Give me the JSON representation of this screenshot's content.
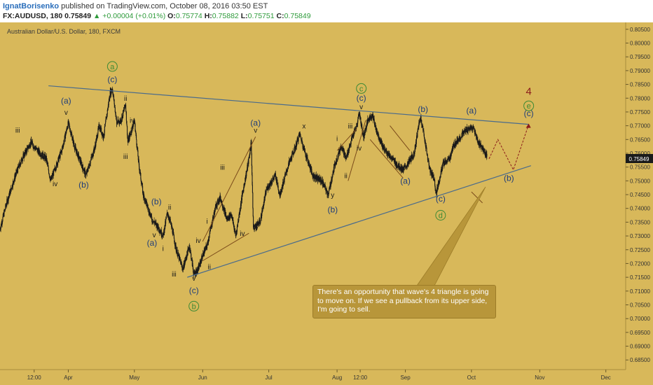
{
  "header": {
    "author": "IgnatBorisenko",
    "published": "published on TradingView.com, October 08, 2016 03:50 EST",
    "symbol": "FX:AUDUSD, 180",
    "last": "0.75849",
    "change": "▲ +0.00004 (+0.01%)",
    "o_label": "O:",
    "o": "0.75774",
    "h_label": "H:",
    "h": "0.75882",
    "l_label": "L:",
    "l": "0.75751",
    "c_label": "C:",
    "c": "0.75849"
  },
  "chart_title": "Australian Dollar/U.S. Dollar, 180, FXCM",
  "price_tag": "0.75849",
  "callout": "There's an opportunity that wave's 4 triangle is going to move on. If we see a pullback from its upper side, I'm going to sell.",
  "colors": {
    "background": "#d8b85a",
    "trendline": "#4a6b8c",
    "channel": "#7a4a1a",
    "candle": "#1a1a1a",
    "label_green": "#3d8a35",
    "label_paren": "#1f3d7a",
    "wave4": "#8b1a1a",
    "forecast": "#8b1a1a",
    "callout_bg": "#b8963a"
  },
  "chart_data": {
    "type": "candlestick",
    "title": "Australian Dollar/U.S. Dollar, 180, FXCM",
    "ylim": [
      0.68,
      0.805
    ],
    "y_ticks": [
      "0.80500",
      "0.80000",
      "0.79500",
      "0.79000",
      "0.78500",
      "0.78000",
      "0.77500",
      "0.77000",
      "0.76500",
      "0.76000",
      "0.75500",
      "0.75000",
      "0.74500",
      "0.74000",
      "0.73500",
      "0.73000",
      "0.72500",
      "0.72000",
      "0.71500",
      "0.71000",
      "0.70500",
      "0.70000",
      "0.69500",
      "0.69000",
      "0.68500"
    ],
    "x_ticks": [
      "12:00",
      "Apr",
      "May",
      "Jun",
      "Jul",
      "Aug",
      "12:00",
      "Sep",
      "Oct",
      "Nov",
      "Dec"
    ],
    "x_tick_times": [
      "2016-03-16T12:00",
      "2016-04-01",
      "2016-05-01",
      "2016-06-01",
      "2016-07-01",
      "2016-08-01",
      "2016-08-11T12:00",
      "2016-09-01",
      "2016-10-01",
      "2016-11-01",
      "2016-12-01"
    ],
    "price_path": [
      [
        "2016-03-01",
        0.7325
      ],
      [
        "2016-03-04",
        0.742
      ],
      [
        "2016-03-08",
        0.752
      ],
      [
        "2016-03-11",
        0.758
      ],
      [
        "2016-03-15",
        0.764
      ],
      [
        "2016-03-18",
        0.761
      ],
      [
        "2016-03-22",
        0.758
      ],
      [
        "2016-03-24",
        0.75
      ],
      [
        "2016-03-29",
        0.761
      ],
      [
        "2016-04-01",
        0.771
      ],
      [
        "2016-04-04",
        0.762
      ],
      [
        "2016-04-07",
        0.756
      ],
      [
        "2016-04-09",
        0.752
      ],
      [
        "2016-04-13",
        0.762
      ],
      [
        "2016-04-15",
        0.77
      ],
      [
        "2016-04-17",
        0.766
      ],
      [
        "2016-04-20",
        0.782
      ],
      [
        "2016-04-21",
        0.7835
      ],
      [
        "2016-04-23",
        0.771
      ],
      [
        "2016-04-25",
        0.772
      ],
      [
        "2016-04-27",
        0.778
      ],
      [
        "2016-04-28",
        0.764
      ],
      [
        "2016-05-01",
        0.772
      ],
      [
        "2016-05-03",
        0.756
      ],
      [
        "2016-05-05",
        0.745
      ],
      [
        "2016-05-09",
        0.736
      ],
      [
        "2016-05-12",
        0.733
      ],
      [
        "2016-05-14",
        0.73
      ],
      [
        "2016-05-16",
        0.7385
      ],
      [
        "2016-05-18",
        0.733
      ],
      [
        "2016-05-20",
        0.725
      ],
      [
        "2016-05-23",
        0.718
      ],
      [
        "2016-05-26",
        0.7265
      ],
      [
        "2016-05-28",
        0.716
      ],
      [
        "2016-05-30",
        0.718
      ],
      [
        "2016-06-01",
        0.723
      ],
      [
        "2016-06-03",
        0.7265
      ],
      [
        "2016-06-05",
        0.734
      ],
      [
        "2016-06-07",
        0.741
      ],
      [
        "2016-06-09",
        0.744
      ],
      [
        "2016-06-12",
        0.736
      ],
      [
        "2016-06-14",
        0.738
      ],
      [
        "2016-06-16",
        0.73
      ],
      [
        "2016-06-19",
        0.745
      ],
      [
        "2016-06-22",
        0.758
      ],
      [
        "2016-06-23",
        0.764
      ],
      [
        "2016-06-24",
        0.733
      ],
      [
        "2016-06-27",
        0.735
      ],
      [
        "2016-06-30",
        0.747
      ],
      [
        "2016-07-04",
        0.752
      ],
      [
        "2016-07-06",
        0.745
      ],
      [
        "2016-07-10",
        0.756
      ],
      [
        "2016-07-13",
        0.762
      ],
      [
        "2016-07-15",
        0.767
      ],
      [
        "2016-07-18",
        0.759
      ],
      [
        "2016-07-21",
        0.752
      ],
      [
        "2016-07-25",
        0.75
      ],
      [
        "2016-07-28",
        0.745
      ],
      [
        "2016-07-31",
        0.756
      ],
      [
        "2016-08-03",
        0.763
      ],
      [
        "2016-08-05",
        0.758
      ],
      [
        "2016-08-08",
        0.766
      ],
      [
        "2016-08-10",
        0.77
      ],
      [
        "2016-08-11",
        0.775
      ],
      [
        "2016-08-13",
        0.766
      ],
      [
        "2016-08-15",
        0.772
      ],
      [
        "2016-08-17",
        0.774
      ],
      [
        "2016-08-19",
        0.768
      ],
      [
        "2016-08-22",
        0.762
      ],
      [
        "2016-08-25",
        0.759
      ],
      [
        "2016-08-28",
        0.756
      ],
      [
        "2016-08-31",
        0.754
      ],
      [
        "2016-09-02",
        0.756
      ],
      [
        "2016-09-05",
        0.76
      ],
      [
        "2016-09-07",
        0.77
      ],
      [
        "2016-09-08",
        0.773
      ],
      [
        "2016-09-10",
        0.764
      ],
      [
        "2016-09-12",
        0.754
      ],
      [
        "2016-09-14",
        0.751
      ],
      [
        "2016-09-15",
        0.7455
      ],
      [
        "2016-09-18",
        0.756
      ],
      [
        "2016-09-21",
        0.758
      ],
      [
        "2016-09-23",
        0.763
      ],
      [
        "2016-09-26",
        0.766
      ],
      [
        "2016-09-28",
        0.768
      ],
      [
        "2016-09-30",
        0.769
      ],
      [
        "2016-10-02",
        0.769
      ],
      [
        "2016-10-04",
        0.764
      ],
      [
        "2016-10-06",
        0.762
      ],
      [
        "2016-10-08",
        0.7585
      ]
    ],
    "upper_trendline": [
      [
        "2016-03-23",
        0.7845
      ],
      [
        "2016-10-27",
        0.7705
      ]
    ],
    "lower_trendline": [
      [
        "2016-05-25",
        0.715
      ],
      [
        "2016-10-28",
        0.7555
      ]
    ],
    "channel_lines": [
      [
        [
          "2016-06-01",
          0.728
        ],
        [
          "2016-06-25",
          0.766
        ]
      ],
      [
        [
          "2016-06-01",
          0.721
        ],
        [
          "2016-06-22",
          0.731
        ]
      ],
      [
        [
          "2016-08-01",
          0.761
        ],
        [
          "2016-08-10",
          0.769
        ]
      ],
      [
        [
          "2016-08-06",
          0.75
        ],
        [
          "2016-08-14",
          0.772
        ]
      ],
      [
        [
          "2016-08-16",
          0.765
        ],
        [
          "2016-08-31",
          0.751
        ]
      ],
      [
        [
          "2016-08-25",
          0.77
        ],
        [
          "2016-09-03",
          0.761
        ]
      ],
      [
        [
          "2016-10-01",
          0.746
        ],
        [
          "2016-10-06",
          0.742
        ]
      ]
    ],
    "forecast_path": [
      [
        "2016-10-09",
        0.758
      ],
      [
        "2016-10-13",
        0.765
      ],
      [
        "2016-10-20",
        0.754
      ],
      [
        "2016-10-27",
        0.7705
      ]
    ],
    "wave_labels": [
      {
        "text": "iii",
        "t": "2016-03-09",
        "p": 0.7675,
        "style": "plain"
      },
      {
        "text": "iv",
        "t": "2016-03-26",
        "p": 0.748,
        "style": "plain"
      },
      {
        "text": "v",
        "t": "2016-03-31",
        "p": 0.774,
        "style": "plain"
      },
      {
        "text": "(a)",
        "t": "2016-03-31",
        "p": 0.778,
        "style": "paren"
      },
      {
        "text": "(b)",
        "t": "2016-04-08",
        "p": 0.7475,
        "style": "paren"
      },
      {
        "text": "a",
        "t": "2016-04-21",
        "p": 0.7905,
        "style": "green"
      },
      {
        "text": "(c)",
        "t": "2016-04-21",
        "p": 0.7858,
        "style": "paren"
      },
      {
        "text": "ii",
        "t": "2016-04-27",
        "p": 0.779,
        "style": "plain"
      },
      {
        "text": "i",
        "t": "2016-04-23",
        "p": 0.7695,
        "style": "plain"
      },
      {
        "text": "iv",
        "t": "2016-04-30",
        "p": 0.771,
        "style": "plain"
      },
      {
        "text": "iii",
        "t": "2016-04-27",
        "p": 0.758,
        "style": "plain"
      },
      {
        "text": "(b)",
        "t": "2016-05-11",
        "p": 0.7415,
        "style": "paren"
      },
      {
        "text": "ii",
        "t": "2016-05-17",
        "p": 0.7395,
        "style": "plain"
      },
      {
        "text": "v",
        "t": "2016-05-10",
        "p": 0.7295,
        "style": "plain"
      },
      {
        "text": "(a)",
        "t": "2016-05-09",
        "p": 0.7265,
        "style": "paren"
      },
      {
        "text": "i",
        "t": "2016-05-14",
        "p": 0.7245,
        "style": "plain"
      },
      {
        "text": "iii",
        "t": "2016-05-19",
        "p": 0.7153,
        "style": "plain"
      },
      {
        "text": "iv",
        "t": "2016-05-30",
        "p": 0.7275,
        "style": "plain"
      },
      {
        "text": "i",
        "t": "2016-06-03",
        "p": 0.7345,
        "style": "plain"
      },
      {
        "text": "ii",
        "t": "2016-06-04",
        "p": 0.718,
        "style": "plain"
      },
      {
        "text": "v",
        "t": "2016-05-28",
        "p": 0.7138,
        "style": "plain"
      },
      {
        "text": "(c)",
        "t": "2016-05-28",
        "p": 0.7092,
        "style": "paren"
      },
      {
        "text": "b",
        "t": "2016-05-28",
        "p": 0.7035,
        "style": "green"
      },
      {
        "text": "iii",
        "t": "2016-06-10",
        "p": 0.754,
        "style": "plain"
      },
      {
        "text": "iv",
        "t": "2016-06-19",
        "p": 0.73,
        "style": "plain"
      },
      {
        "text": "(a)",
        "t": "2016-06-25",
        "p": 0.77,
        "style": "paren"
      },
      {
        "text": "v",
        "t": "2016-06-25",
        "p": 0.7675,
        "style": "plain"
      },
      {
        "text": "w",
        "t": "2016-06-25",
        "p": 0.732,
        "style": "plain"
      },
      {
        "text": "x",
        "t": "2016-07-17",
        "p": 0.769,
        "style": "plain"
      },
      {
        "text": "y",
        "t": "2016-07-30",
        "p": 0.744,
        "style": "plain"
      },
      {
        "text": "(b)",
        "t": "2016-07-30",
        "p": 0.7385,
        "style": "paren"
      },
      {
        "text": "i",
        "t": "2016-08-01",
        "p": 0.7645,
        "style": "plain"
      },
      {
        "text": "ii",
        "t": "2016-08-05",
        "p": 0.751,
        "style": "plain"
      },
      {
        "text": "iii",
        "t": "2016-08-07",
        "p": 0.769,
        "style": "plain"
      },
      {
        "text": "iv",
        "t": "2016-08-11",
        "p": 0.761,
        "style": "plain"
      },
      {
        "text": "c",
        "t": "2016-08-12",
        "p": 0.7825,
        "style": "green"
      },
      {
        "text": "(c)",
        "t": "2016-08-12",
        "p": 0.779,
        "style": "paren"
      },
      {
        "text": "v",
        "t": "2016-08-12",
        "p": 0.776,
        "style": "plain"
      },
      {
        "text": "(a)",
        "t": "2016-09-01",
        "p": 0.749,
        "style": "paren"
      },
      {
        "text": "(b)",
        "t": "2016-09-09",
        "p": 0.775,
        "style": "paren"
      },
      {
        "text": "(c)",
        "t": "2016-09-17",
        "p": 0.7425,
        "style": "paren"
      },
      {
        "text": "d",
        "t": "2016-09-17",
        "p": 0.7365,
        "style": "green"
      },
      {
        "text": "(a)",
        "t": "2016-10-01",
        "p": 0.7745,
        "style": "paren"
      },
      {
        "text": "(b)",
        "t": "2016-10-18",
        "p": 0.75,
        "style": "paren"
      },
      {
        "text": "4",
        "t": "2016-10-27",
        "p": 0.7812,
        "style": "wave4"
      },
      {
        "text": "e",
        "t": "2016-10-27",
        "p": 0.7762,
        "style": "green"
      },
      {
        "text": "(c)",
        "t": "2016-10-27",
        "p": 0.7735,
        "style": "paren"
      }
    ]
  }
}
